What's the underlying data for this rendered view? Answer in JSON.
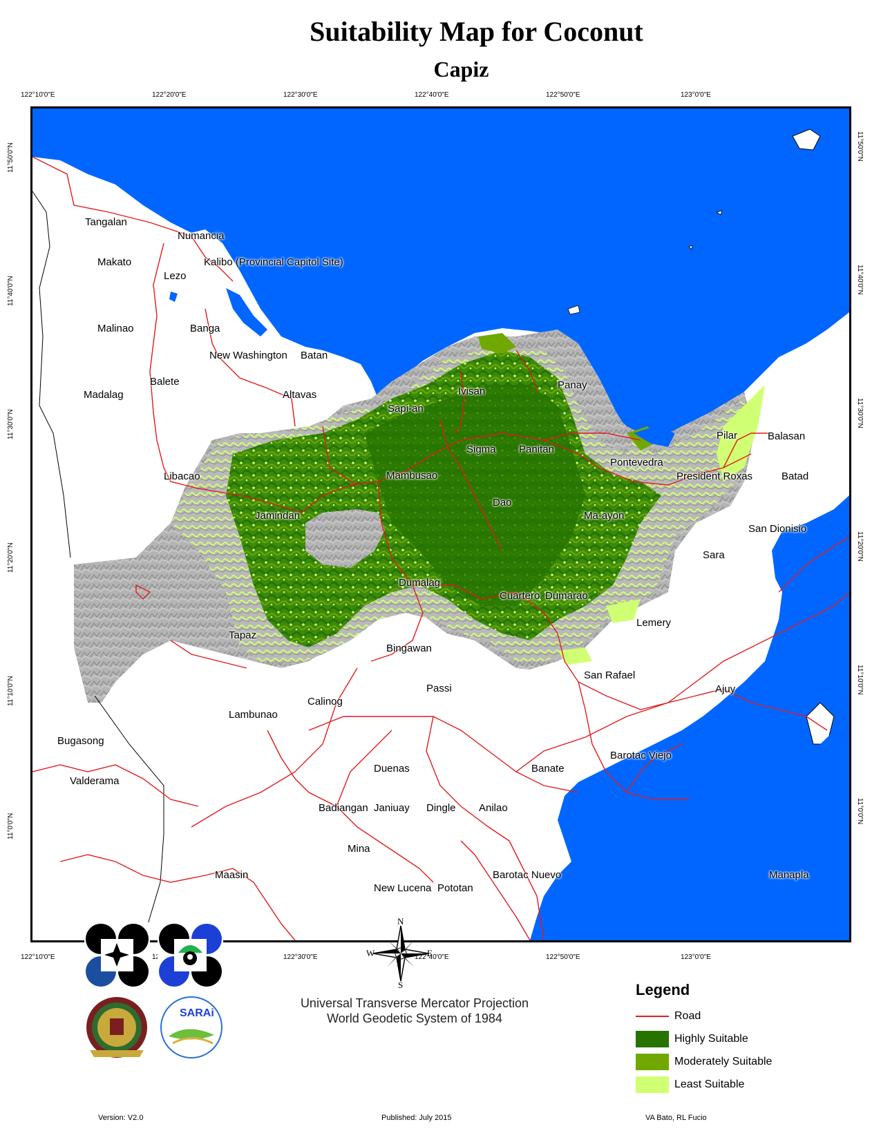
{
  "title": "Suitability Map for Coconut",
  "subtitle": "Capiz",
  "longitude_labels": [
    "122°10'0\"E",
    "122°20'0\"E",
    "122°30'0\"E",
    "122°40'0\"E",
    "122°50'0\"E",
    "123°0'0\"E"
  ],
  "latitude_labels": [
    "11°50'0\"N",
    "11°40'0\"N",
    "11°30'0\"N",
    "11°20'0\"N",
    "11°10'0\"N",
    "11°0'0\"N"
  ],
  "places": [
    "Tangalan",
    "Numancia",
    "Makato",
    "Kalibo (Provincial Capitol Site)",
    "Lezo",
    "Malinao",
    "Banga",
    "New Washington",
    "Batan",
    "Balete",
    "Madalag",
    "Altavas",
    "Ivisan",
    "Panay",
    "Sapi-an",
    "Pilar",
    "Balasan",
    "Sigma",
    "Panitan",
    "Pontevedra",
    "Mambusao",
    "President Roxas",
    "Batad",
    "Libacao",
    "Dao",
    "Jamindan",
    "Ma-ayon",
    "San Dionisio",
    "Sara",
    "Dumalag",
    "Cuartero",
    "Dumarao",
    "Lemery",
    "Tapaz",
    "Bingawan",
    "San Rafael",
    "Passi",
    "Ajuy",
    "Calinog",
    "Lambunao",
    "Bugasong",
    "Barotac Viejo",
    "Duenas",
    "Banate",
    "Valderama",
    "Badiangan",
    "Janiuay",
    "Dingle",
    "Anilao",
    "Mina",
    "Maasin",
    "Barotac Nuevo",
    "Manapla",
    "New Lucena",
    "Pototan"
  ],
  "compass": {
    "n": "N",
    "s": "S",
    "e": "E",
    "w": "W"
  },
  "legend": {
    "title": "Legend",
    "items": [
      {
        "label": "Road",
        "color": "#e31a1c",
        "kind": "line"
      },
      {
        "label": "Highly Suitable",
        "color": "#267300",
        "kind": "box"
      },
      {
        "label": "Moderately Suitable",
        "color": "#70a800",
        "kind": "box"
      },
      {
        "label": "Least Suitable",
        "color": "#d1ff73",
        "kind": "box"
      }
    ]
  },
  "projection_lines": [
    "Universal Transverse Mercator Projection",
    "World Geodetic System of 1984"
  ],
  "footer": {
    "version": "Version: V2.0",
    "published": "Published: July 2015",
    "authors": "VA Bato, RL Fucio"
  },
  "logo_text": {
    "sarai": "SARAi"
  },
  "colors": {
    "sea": "#0066ff",
    "land": "#ffffff",
    "terrain": "#b0b0b0",
    "road": "#e31a1c",
    "highly": "#267300",
    "moderately": "#70a800",
    "least": "#d1ff73"
  }
}
